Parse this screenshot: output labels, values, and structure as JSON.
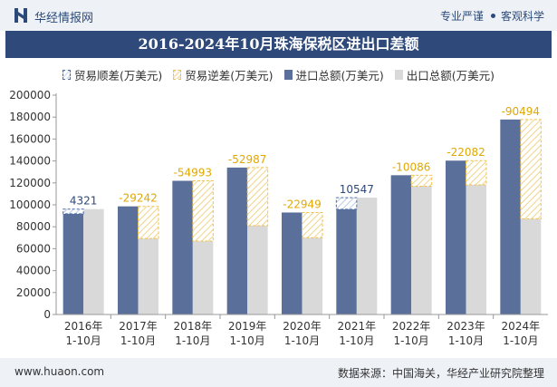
{
  "header": {
    "brand": "华经情报网",
    "tag1": "专业严谨",
    "tag2": "客观科学"
  },
  "title": "2016-2024年10月珠海保税区进出口差额",
  "legend": {
    "surplus": "贸易顺差(万美元)",
    "deficit": "贸易逆差(万美元)",
    "import": "进口总额(万美元)",
    "export": "出口总额(万美元)"
  },
  "footer": {
    "url": "www.huaon.com",
    "source": "数据来源：中国海关，华经产业研究院整理"
  },
  "colors": {
    "import": "#5b6f9b",
    "export": "#d9d9d9",
    "surplus": "#4a6fa8",
    "deficit": "#f0c24a",
    "title_bg": "#2f4a7a"
  },
  "chart_data": {
    "type": "bar",
    "categories": [
      [
        "2016年",
        "1-10月"
      ],
      [
        "2017年",
        "1-10月"
      ],
      [
        "2018年",
        "1-10月"
      ],
      [
        "2019年",
        "1-10月"
      ],
      [
        "2020年",
        "1-10月"
      ],
      [
        "2021年",
        "1-10月"
      ],
      [
        "2022年",
        "1-10月"
      ],
      [
        "2023年",
        "1-10月"
      ],
      [
        "2024年",
        "1-10月"
      ]
    ],
    "series": [
      {
        "name": "进口总额(万美元)",
        "values": [
          91800,
          98600,
          121900,
          134000,
          93000,
          96000,
          127000,
          140300,
          177800
        ]
      },
      {
        "name": "出口总额(万美元)",
        "values": [
          96121,
          69358,
          66907,
          81013,
          70051,
          106547,
          116914,
          118218,
          87306
        ]
      }
    ],
    "balance": [
      4321,
      -29242,
      -54993,
      -52987,
      -22949,
      10547,
      -10086,
      -22082,
      -90494
    ],
    "balance_labels": [
      "4321",
      "-29242",
      "-54993",
      "-52987",
      "-22949",
      "10547",
      "-10086",
      "-22082",
      "-90494"
    ],
    "yticks": [
      "0",
      "20000",
      "40000",
      "60000",
      "80000",
      "100000",
      "120000",
      "140000",
      "160000",
      "180000",
      "200000"
    ],
    "ylim": [
      0,
      200000
    ],
    "legend_position": "top"
  }
}
